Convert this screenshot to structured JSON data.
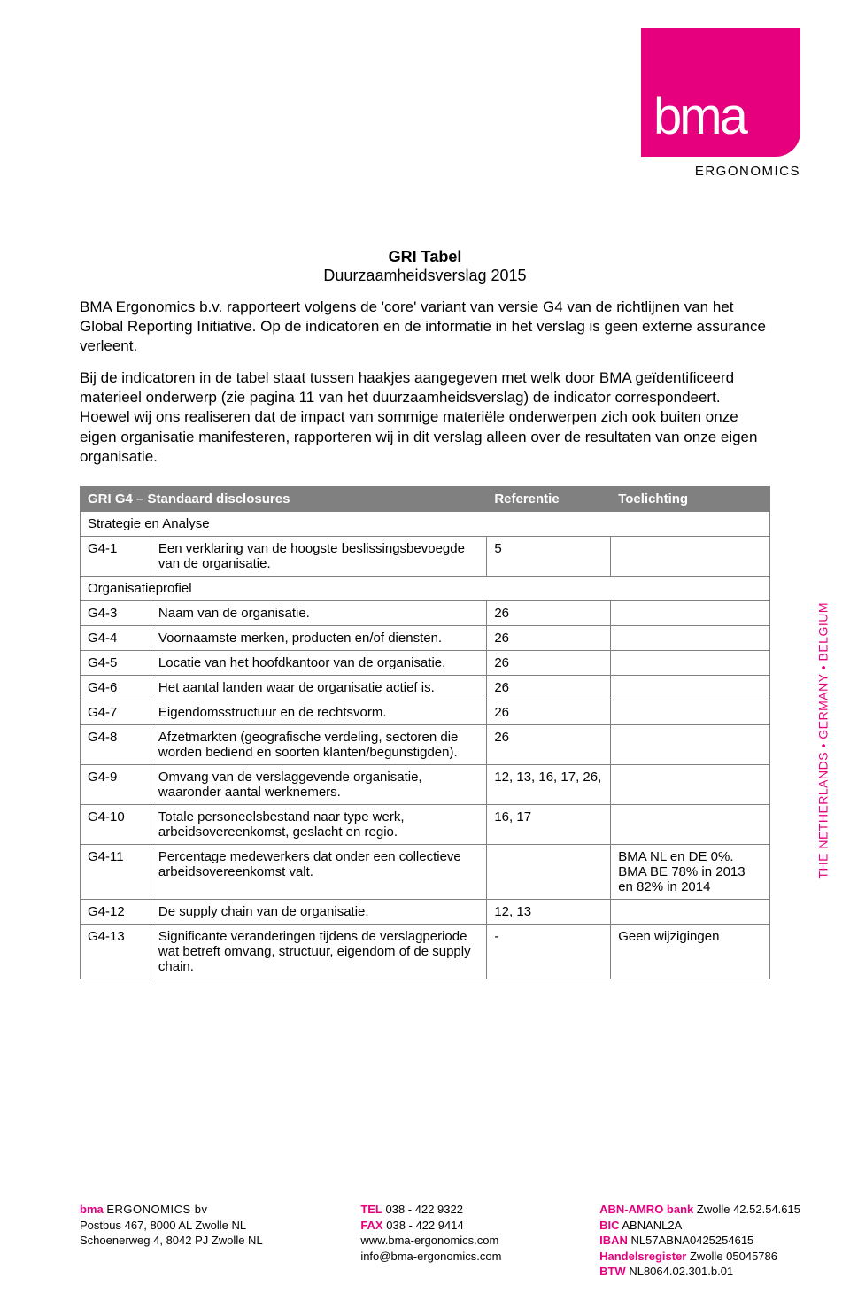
{
  "logo": {
    "text": "bma",
    "subtext": "ERGONOMICS"
  },
  "title": {
    "main": "GRI Tabel",
    "sub": "Duurzaamheidsverslag 2015"
  },
  "paragraphs": {
    "p1": "BMA Ergonomics b.v. rapporteert volgens de 'core' variant van versie G4 van de richtlijnen van het Global Reporting Initiative. Op de indicatoren en de informatie in het verslag is geen externe assurance verleent.",
    "p2": "Bij de indicatoren in de tabel staat tussen haakjes aangegeven met welk door BMA geïdentificeerd materieel onderwerp (zie pagina 11 van het duurzaamheidsverslag) de indicator correspondeert. Hoewel wij ons realiseren dat de impact van sommige materiële onderwerpen zich ook buiten onze eigen organisatie manifesteren, rapporteren wij in dit verslag alleen over de resultaten van onze eigen organisatie."
  },
  "table": {
    "headers": {
      "c1": "GRI G4 – Standaard disclosures",
      "c2": "Referentie",
      "c3": "Toelichting"
    },
    "rows": [
      {
        "type": "section",
        "label": "Strategie en Analyse"
      },
      {
        "type": "row",
        "code": "G4-1",
        "desc": "Een verklaring van de hoogste beslissingsbevoegde van de organisatie.",
        "ref": "5",
        "note": ""
      },
      {
        "type": "section",
        "label": "Organisatieprofiel"
      },
      {
        "type": "row",
        "code": "G4-3",
        "desc": "Naam van de organisatie.",
        "ref": "26",
        "note": ""
      },
      {
        "type": "row",
        "code": "G4-4",
        "desc": "Voornaamste merken, producten en/of diensten.",
        "ref": "26",
        "note": ""
      },
      {
        "type": "row",
        "code": "G4-5",
        "desc": "Locatie van het hoofdkantoor van de organisatie.",
        "ref": "26",
        "note": ""
      },
      {
        "type": "row",
        "code": "G4-6",
        "desc": "Het aantal landen waar de organisatie actief is.",
        "ref": "26",
        "note": ""
      },
      {
        "type": "row",
        "code": "G4-7",
        "desc": "Eigendomsstructuur en de rechtsvorm.",
        "ref": "26",
        "note": ""
      },
      {
        "type": "row",
        "code": "G4-8",
        "desc": "Afzetmarkten (geografische verdeling, sectoren die worden bediend en soorten klanten/begunstigden).",
        "ref": "26",
        "note": ""
      },
      {
        "type": "row",
        "code": "G4-9",
        "desc": "Omvang van de verslaggevende organisatie, waaronder aantal werknemers.",
        "ref": "12, 13, 16, 17, 26,",
        "note": ""
      },
      {
        "type": "row",
        "code": "G4-10",
        "desc": "Totale personeelsbestand naar type werk, arbeidsovereenkomst, geslacht en regio.",
        "ref": "16, 17",
        "note": ""
      },
      {
        "type": "row",
        "code": "G4-11",
        "desc": "Percentage medewerkers dat onder een collectieve arbeidsovereenkomst valt.",
        "ref": "",
        "note": "BMA NL en DE 0%. BMA BE 78% in 2013 en 82% in 2014"
      },
      {
        "type": "row",
        "code": "G4-12",
        "desc": "De supply chain van de organisatie.",
        "ref": "12, 13",
        "note": ""
      },
      {
        "type": "row",
        "code": "G4-13",
        "desc": "Significante veranderingen tijdens de verslagperiode wat betreft omvang, structuur, eigendom of de supply chain.",
        "ref": "-",
        "note": "Geen wijzigingen"
      }
    ]
  },
  "side_text": "THE NETHERLANDS • GERMANY • BELGIUM",
  "footer": {
    "left": {
      "brand_pink": "bma",
      "brand_black": "ERGONOMICS bv",
      "l1": "Postbus 467, 8000 AL Zwolle NL",
      "l2": "Schoenerweg 4, 8042 PJ Zwolle NL"
    },
    "mid": {
      "tel_label": "TEL",
      "tel": "038 - 422 9322",
      "fax_label": "FAX",
      "fax": "038 - 422 9414",
      "web": "www.bma-ergonomics.com",
      "mail": "info@bma-ergonomics.com"
    },
    "right": {
      "bank_label": "ABN-AMRO bank",
      "bank": "Zwolle 42.52.54.615",
      "bic_label": "BIC",
      "bic": "ABNANL2A",
      "iban_label": "IBAN",
      "iban": "NL57ABNA0425254615",
      "hr_label": "Handelsregister",
      "hr": "Zwolle 05045786",
      "btw_label": "BTW",
      "btw": "NL8064.02.301.b.01"
    }
  },
  "colors": {
    "accent": "#e6007e",
    "header_bg": "#808080"
  }
}
